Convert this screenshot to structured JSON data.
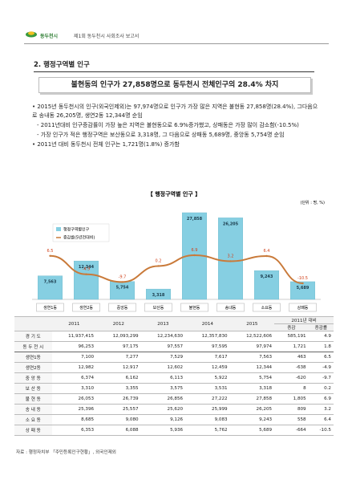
{
  "header": {
    "org": "동두천시",
    "report": "제1회 동두천시 사회조사 보고서"
  },
  "section_title": "2. 행정구역별 인구",
  "headline": "불현동의 인구가 27,858명으로 동두천시 전체인구의 28.4% 차지",
  "bullets": [
    "• 2015년 동두천시의 인구(외국인제외)는 97,974명으로 인구가 가장 많은 지역은 불현동 27,858명(28.4%), 그다음으로 송내동 26,205명, 생연2동 12,344명 순임",
    "- 2011년대비 인구증감률이 가장 높은 지역은 불현동으로 6.9%증가했고, 상패동은 가장 많이 감소함(-10.5%)",
    "- 가장 인구가 적은 행정구역은 보산동으로 3,318명, 그 다음으로 상패동 5,689명, 중앙동 5,754명 순임",
    "• 2011년 대비 동두천시 전체 인구는 1,721명(1.8%) 증가함"
  ],
  "chart_data": {
    "type": "bar",
    "title": "【 행정구역별 인구 】",
    "unit": "(단위 : 명, %)",
    "categories": [
      "생연1동",
      "생연2동",
      "중앙동",
      "보산동",
      "불현동",
      "송내동",
      "소요동",
      "상패동"
    ],
    "series": [
      {
        "name": "행정구역별인구",
        "type": "bar",
        "color": "#86cfe2",
        "values": [
          7563,
          12344,
          5754,
          3318,
          27858,
          26205,
          9243,
          5689
        ],
        "value_labels": [
          "7,563",
          "12,344",
          "5,754",
          "3,318",
          "27,858",
          "26,205",
          "9,243",
          "5,689"
        ]
      },
      {
        "name": "증감률(5년전대비)",
        "type": "line",
        "axis": "y2",
        "color": "#c97a3a",
        "values": [
          6.5,
          -4.9,
          -9.7,
          0.2,
          6.9,
          3.2,
          6.4,
          -10.5
        ]
      }
    ]
  },
  "table": {
    "columns": [
      "2011",
      "2012",
      "2013",
      "2014",
      "2015",
      "2011년 대비"
    ],
    "subcolumns": [
      "증감",
      "증감률"
    ],
    "rows": [
      [
        "경 기 도",
        "11,937,415",
        "12,093,299",
        "12,234,630",
        "12,357,830",
        "12,522,606",
        "585,191",
        "4.9"
      ],
      [
        "동 두 천 시",
        "96,253",
        "97,175",
        "97,557",
        "97,595",
        "97,974",
        "1,721",
        "1.8"
      ],
      [
        "생연1동",
        "7,100",
        "7,277",
        "7,529",
        "7,617",
        "7,563",
        "463",
        "6.5"
      ],
      [
        "생연2동",
        "12,982",
        "12,917",
        "12,602",
        "12,459",
        "12,344",
        "-638",
        "-4.9"
      ],
      [
        "중 앙 동",
        "6,374",
        "6,162",
        "6,113",
        "5,922",
        "5,754",
        "-620",
        "-9.7"
      ],
      [
        "보 산 동",
        "3,310",
        "3,355",
        "3,575",
        "3,531",
        "3,318",
        "8",
        "0.2"
      ],
      [
        "불 현 동",
        "26,053",
        "26,739",
        "26,856",
        "27,222",
        "27,858",
        "1,805",
        "6.9"
      ],
      [
        "송 내 동",
        "25,396",
        "25,557",
        "25,620",
        "25,999",
        "26,205",
        "809",
        "3.2"
      ],
      [
        "소 요 동",
        "8,685",
        "9,080",
        "9,126",
        "9,083",
        "9,243",
        "558",
        "6.4"
      ],
      [
        "상 패 동",
        "6,353",
        "6,088",
        "5,936",
        "5,762",
        "5,689",
        "-664",
        "-10.5"
      ]
    ]
  },
  "source": "자료 : 행정자치부 「주민등록인구현황」, 외국인제외"
}
